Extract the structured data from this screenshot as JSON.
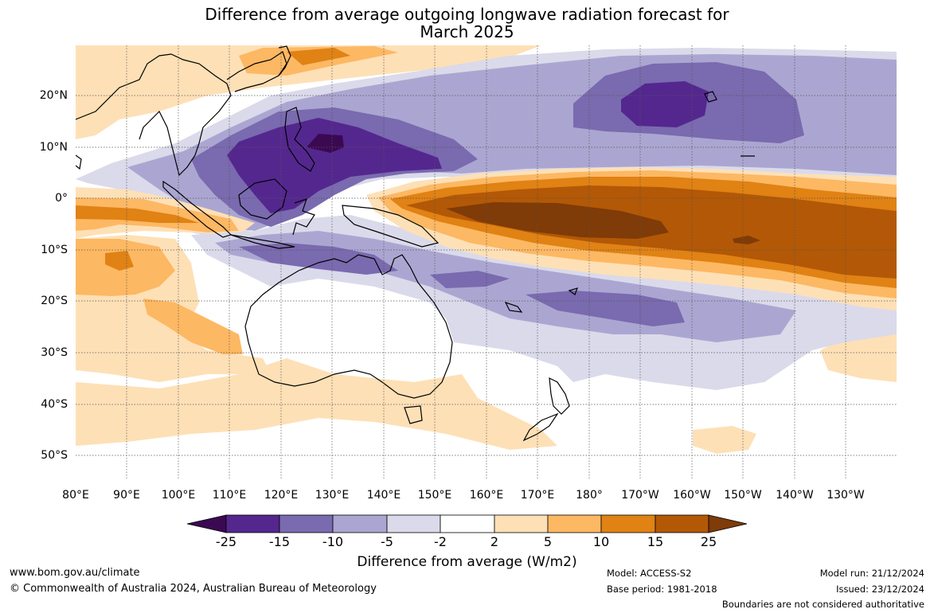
{
  "title": {
    "line1": "Difference from average outgoing longwave radiation forecast for",
    "line2": "March 2025"
  },
  "axes": {
    "lat_labels": [
      "20°N",
      "10°N",
      "0°",
      "10°S",
      "20°S",
      "30°S",
      "40°S",
      "50°S"
    ],
    "lon_labels": [
      "80°E",
      "90°E",
      "100°E",
      "110°E",
      "120°E",
      "130°E",
      "140°E",
      "150°E",
      "160°E",
      "170°E",
      "180°",
      "170°W",
      "160°W",
      "150°W",
      "140°W",
      "130°W"
    ]
  },
  "colorbar": {
    "tick_labels": [
      "-25",
      "-15",
      "-10",
      "-5",
      "-2",
      "2",
      "5",
      "10",
      "15",
      "25"
    ],
    "colors": [
      "#3b0952",
      "#54278f",
      "#7a6aaf",
      "#aba6d1",
      "#dadaeb",
      "#ffffff",
      "#fee0b6",
      "#fdb863",
      "#e08214",
      "#b35806",
      "#7f3b08"
    ],
    "label": "Difference from average (W/m2)"
  },
  "footer": {
    "website": "www.bom.gov.au/climate",
    "copyright": "© Commonwealth of Australia 2024, Australian Bureau of Meteorology",
    "model": "Model: ACCESS-S2",
    "base_period": "Base period: 1981-2018",
    "model_run": "Model run: 21/12/2024",
    "issued": "Issued: 23/12/2024",
    "disclaimer": "Boundaries are not considered authoritative"
  }
}
